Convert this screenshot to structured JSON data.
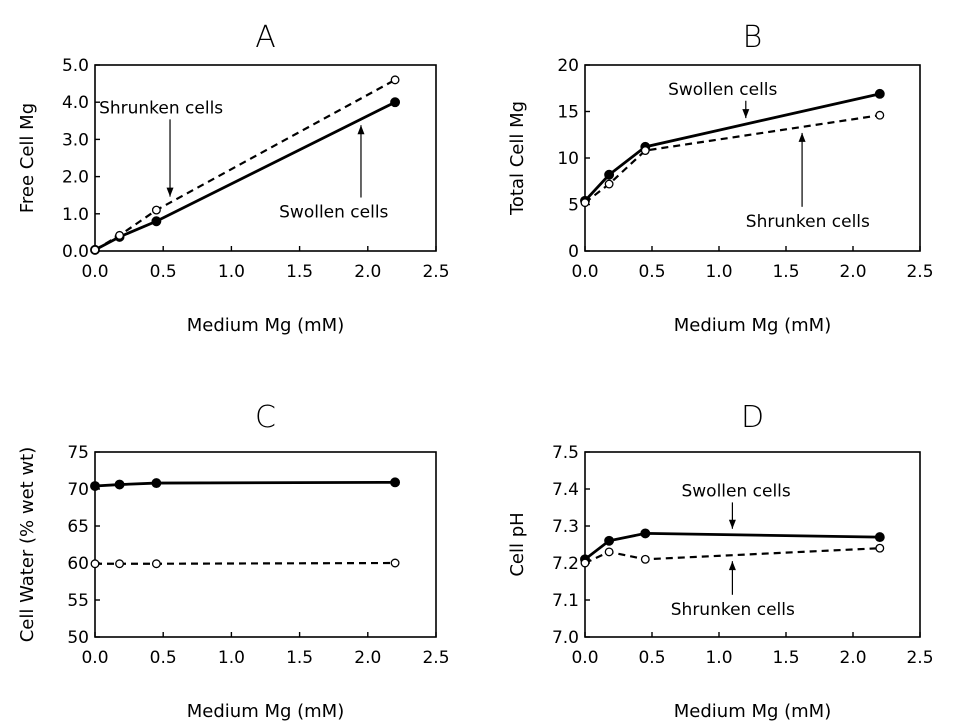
{
  "chart_data": [
    {
      "panel": "A",
      "type": "line",
      "title": "A",
      "xlabel": "Medium Mg (mM)",
      "ylabel": "Free Cell Mg",
      "xlim": [
        0,
        2.5
      ],
      "ylim": [
        0,
        5
      ],
      "xticks": [
        "0.0",
        "0.5",
        "1.0",
        "1.5",
        "2.0",
        "2.5"
      ],
      "yticks": [
        "0.0",
        "1.0",
        "2.0",
        "3.0",
        "4.0",
        "5.0"
      ],
      "x": [
        0.0,
        0.18,
        0.45,
        2.2
      ],
      "series": [
        {
          "key": "swollen",
          "style": "solid",
          "marker": "filled",
          "values": [
            0.03,
            0.38,
            0.8,
            4.0
          ]
        },
        {
          "key": "shrunken",
          "style": "dashed",
          "marker": "open",
          "values": [
            0.03,
            0.42,
            1.1,
            4.6
          ]
        }
      ],
      "annotations": [
        {
          "text": "Shrunken cells",
          "target": "shrunken",
          "at_x": 0.55,
          "text_x": 0.03,
          "text_y": 3.7
        },
        {
          "text": "Swollen cells",
          "target": "swollen",
          "at_x": 1.95,
          "text_x": 1.35,
          "text_y": 0.9
        }
      ]
    },
    {
      "panel": "B",
      "type": "line",
      "title": "B",
      "xlabel": "Medium Mg (mM)",
      "ylabel": "Total Cell Mg",
      "xlim": [
        0,
        2.5
      ],
      "ylim": [
        0,
        20
      ],
      "xticks": [
        "0.0",
        "0.5",
        "1.0",
        "1.5",
        "2.0",
        "2.5"
      ],
      "yticks": [
        "0",
        "5",
        "10",
        "15",
        "20"
      ],
      "x": [
        0.0,
        0.18,
        0.45,
        2.2
      ],
      "series": [
        {
          "key": "swollen",
          "style": "solid",
          "marker": "filled",
          "values": [
            5.4,
            8.2,
            11.2,
            16.9
          ]
        },
        {
          "key": "shrunken",
          "style": "dashed",
          "marker": "open",
          "values": [
            5.2,
            7.2,
            10.8,
            14.6
          ]
        }
      ],
      "annotations": [
        {
          "text": "Swollen cells",
          "target": "swollen",
          "at_x": 1.2,
          "text_x": 0.62,
          "text_y": 16.8
        },
        {
          "text": "Shrunken cells",
          "target": "shrunken",
          "at_x": 1.62,
          "text_x": 1.2,
          "text_y": 2.6
        }
      ]
    },
    {
      "panel": "C",
      "type": "line",
      "title": "C",
      "xlabel": "Medium Mg (mM)",
      "ylabel": "Cell Water (% wet wt)",
      "xlim": [
        0,
        2.5
      ],
      "ylim": [
        50,
        75
      ],
      "xticks": [
        "0.0",
        "0.5",
        "1.0",
        "1.5",
        "2.0",
        "2.5"
      ],
      "yticks": [
        "50",
        "55",
        "60",
        "65",
        "70",
        "75"
      ],
      "x": [
        0.0,
        0.18,
        0.45,
        2.2
      ],
      "series": [
        {
          "key": "swollen",
          "style": "solid",
          "marker": "filled",
          "values": [
            70.4,
            70.6,
            70.8,
            70.9
          ]
        },
        {
          "key": "shrunken",
          "style": "dashed",
          "marker": "open",
          "values": [
            59.9,
            59.9,
            59.9,
            60.0
          ]
        }
      ],
      "annotations": []
    },
    {
      "panel": "D",
      "type": "line",
      "title": "D",
      "xlabel": "Medium Mg (mM)",
      "ylabel": "Cell pH",
      "xlim": [
        0,
        2.5
      ],
      "ylim": [
        7.0,
        7.5
      ],
      "xticks": [
        "0.0",
        "0.5",
        "1.0",
        "1.5",
        "2.0",
        "2.5"
      ],
      "yticks": [
        "7.0",
        "7.1",
        "7.2",
        "7.3",
        "7.4",
        "7.5"
      ],
      "x": [
        0.0,
        0.18,
        0.45,
        2.2
      ],
      "series": [
        {
          "key": "swollen",
          "style": "solid",
          "marker": "filled",
          "values": [
            7.21,
            7.26,
            7.28,
            7.27
          ]
        },
        {
          "key": "shrunken",
          "style": "dashed",
          "marker": "open",
          "values": [
            7.2,
            7.23,
            7.21,
            7.24
          ]
        }
      ],
      "annotations": [
        {
          "text": "Swollen cells",
          "target": "swollen",
          "at_x": 1.1,
          "text_x": 0.72,
          "text_y": 7.38
        },
        {
          "text": "Shrunken cells",
          "target": "shrunken",
          "at_x": 1.1,
          "text_x": 0.64,
          "text_y": 7.06
        }
      ]
    }
  ]
}
